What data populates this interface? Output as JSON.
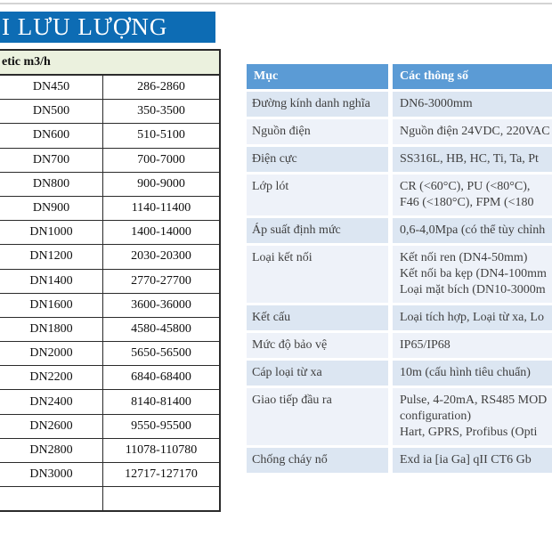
{
  "banner": {
    "title_visible": "I LƯU LƯỢNG"
  },
  "left_table": {
    "header": "etic m3/h",
    "unit": "m3/h",
    "rows": [
      [
        "DN450",
        "286-2860"
      ],
      [
        "DN500",
        "350-3500"
      ],
      [
        "DN600",
        "510-5100"
      ],
      [
        "DN700",
        "700-7000"
      ],
      [
        "DN800",
        "900-9000"
      ],
      [
        "DN900",
        "1140-11400"
      ],
      [
        "DN1000",
        "1400-14000"
      ],
      [
        "DN1200",
        "2030-20300"
      ],
      [
        "DN1400",
        "2770-27700"
      ],
      [
        "DN1600",
        "3600-36000"
      ],
      [
        "DN1800",
        "4580-45800"
      ],
      [
        "DN2000",
        "5650-56500"
      ],
      [
        "DN2200",
        "6840-68400"
      ],
      [
        "DN2400",
        "8140-81400"
      ],
      [
        "DN2600",
        "9550-95500"
      ],
      [
        "DN2800",
        "11078-110780"
      ],
      [
        "DN3000",
        "12717-127170"
      ],
      [
        "",
        ""
      ]
    ]
  },
  "right_table": {
    "header": {
      "col1": "Mục",
      "col2": "Các thông số"
    },
    "rows": [
      {
        "label": "Đường kính danh nghĩa",
        "lines": [
          "DN6-3000mm"
        ]
      },
      {
        "label": "Nguồn điện",
        "lines": [
          "Nguồn điện 24VDC, 220VAC"
        ]
      },
      {
        "label": "Điện cực",
        "lines": [
          "SS316L, HB, HC, Ti, Ta, Pt"
        ]
      },
      {
        "label": "Lớp lót",
        "lines": [
          "CR (<60°C), PU (<80°C),",
          "F46 (<180°C), FPM (<180"
        ]
      },
      {
        "label": "Áp suất định mức",
        "lines": [
          "0,6-4,0Mpa (có thể tùy chỉnh"
        ]
      },
      {
        "label": "Loại kết nối",
        "lines": [
          "Kết nối ren (DN4-50mm)",
          "Kết nối ba kẹp (DN4-100mm",
          "Loại mặt bích (DN10-3000m"
        ]
      },
      {
        "label": "Kết cấu",
        "lines": [
          "Loại tích hợp, Loại từ xa, Lo"
        ]
      },
      {
        "label": "Mức độ bảo vệ",
        "lines": [
          "IP65/IP68"
        ]
      },
      {
        "label": "Cáp loại từ xa",
        "lines": [
          "10m (cấu hình tiêu chuẩn)"
        ]
      },
      {
        "label": "Giao tiếp đầu ra",
        "lines": [
          "Pulse, 4-20mA, RS485 MOD",
          "configuration)",
          "Hart, GPRS, Profibus (Opti"
        ]
      },
      {
        "label": "Chống cháy nổ",
        "lines": [
          "Exd ia [ia Ga] qII CT6 Gb"
        ]
      }
    ]
  },
  "colors": {
    "banner_bg": "#0d6cb4",
    "header_bg": "#5b9bd5",
    "row_odd": "#dce6f2",
    "row_even": "#eef2f9",
    "left_header_bg": "#ebf1de",
    "text_dark": "#3f3f3f",
    "rule": "#d4d4d4"
  }
}
